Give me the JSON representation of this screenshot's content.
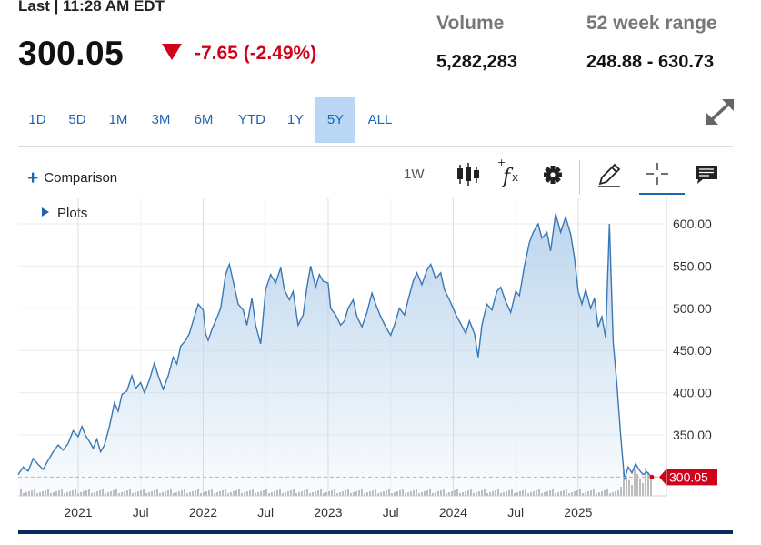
{
  "header": {
    "last_label": "Last | 11:28 AM EDT",
    "price": "300.05",
    "change": "-7.65 (-2.49%)",
    "volume_label": "Volume",
    "volume_value": "5,282,283",
    "range_label": "52 week range",
    "range_value": "248.88 - 630.73"
  },
  "colors": {
    "down": "#d0021b",
    "accent": "#1f66b1",
    "line": "#3a78b5",
    "area": "#b9d3ec",
    "bottom_bar": "#0a2a5c"
  },
  "ranges": [
    {
      "label": "1D",
      "active": false
    },
    {
      "label": "5D",
      "active": false
    },
    {
      "label": "1M",
      "active": false
    },
    {
      "label": "3M",
      "active": false
    },
    {
      "label": "6M",
      "active": false
    },
    {
      "label": "YTD",
      "active": false
    },
    {
      "label": "1Y",
      "active": false
    },
    {
      "label": "5Y",
      "active": true
    },
    {
      "label": "ALL",
      "active": false
    }
  ],
  "toolbar": {
    "comparison": "Comparison",
    "plots": "Plots",
    "interval": "1W",
    "icons": [
      "candlestick-icon",
      "function-icon",
      "gear-icon",
      "pencil-icon",
      "crosshair-icon",
      "comment-icon"
    ]
  },
  "chart_data": {
    "type": "area",
    "title": "",
    "xlabel": "",
    "ylabel": "",
    "y_tick_labels": [
      "350.00",
      "400.00",
      "450.00",
      "500.00",
      "550.00",
      "600.00"
    ],
    "x_tick_labels": [
      "2021",
      "Jul",
      "2022",
      "Jul",
      "2023",
      "Jul",
      "2024",
      "Jul",
      "2025"
    ],
    "ylim": [
      284,
      612
    ],
    "xlim": [
      2020.52,
      2025.59
    ],
    "last_price_label": "300.05",
    "last_price": 300.05,
    "grid": true,
    "series": [
      {
        "values": [
          [
            2020.52,
            303
          ],
          [
            2020.56,
            312
          ],
          [
            2020.6,
            307
          ],
          [
            2020.64,
            322
          ],
          [
            2020.68,
            315
          ],
          [
            2020.72,
            309
          ],
          [
            2020.76,
            320
          ],
          [
            2020.8,
            330
          ],
          [
            2020.84,
            338
          ],
          [
            2020.88,
            332
          ],
          [
            2020.92,
            340
          ],
          [
            2020.96,
            355
          ],
          [
            2021.0,
            348
          ],
          [
            2021.03,
            360
          ],
          [
            2021.06,
            349
          ],
          [
            2021.09,
            342
          ],
          [
            2021.12,
            334
          ],
          [
            2021.15,
            345
          ],
          [
            2021.18,
            330
          ],
          [
            2021.21,
            338
          ],
          [
            2021.25,
            360
          ],
          [
            2021.29,
            388
          ],
          [
            2021.32,
            378
          ],
          [
            2021.35,
            398
          ],
          [
            2021.39,
            402
          ],
          [
            2021.43,
            420
          ],
          [
            2021.46,
            405
          ],
          [
            2021.5,
            412
          ],
          [
            2021.53,
            400
          ],
          [
            2021.57,
            415
          ],
          [
            2021.61,
            435
          ],
          [
            2021.64,
            420
          ],
          [
            2021.68,
            404
          ],
          [
            2021.72,
            420
          ],
          [
            2021.76,
            442
          ],
          [
            2021.79,
            434
          ],
          [
            2021.82,
            455
          ],
          [
            2021.86,
            462
          ],
          [
            2021.89,
            470
          ],
          [
            2021.93,
            490
          ],
          [
            2021.96,
            505
          ],
          [
            2022.0,
            498
          ],
          [
            2022.02,
            470
          ],
          [
            2022.04,
            462
          ],
          [
            2022.07,
            475
          ],
          [
            2022.1,
            485
          ],
          [
            2022.14,
            500
          ],
          [
            2022.18,
            540
          ],
          [
            2022.21,
            552
          ],
          [
            2022.24,
            532
          ],
          [
            2022.28,
            505
          ],
          [
            2022.32,
            498
          ],
          [
            2022.35,
            480
          ],
          [
            2022.39,
            512
          ],
          [
            2022.42,
            480
          ],
          [
            2022.46,
            458
          ],
          [
            2022.5,
            522
          ],
          [
            2022.54,
            540
          ],
          [
            2022.58,
            530
          ],
          [
            2022.62,
            548
          ],
          [
            2022.65,
            522
          ],
          [
            2022.69,
            510
          ],
          [
            2022.72,
            520
          ],
          [
            2022.76,
            480
          ],
          [
            2022.8,
            492
          ],
          [
            2022.83,
            525
          ],
          [
            2022.86,
            550
          ],
          [
            2022.9,
            525
          ],
          [
            2022.93,
            540
          ],
          [
            2022.96,
            532
          ],
          [
            2023.0,
            530
          ],
          [
            2023.02,
            500
          ],
          [
            2023.06,
            492
          ],
          [
            2023.1,
            480
          ],
          [
            2023.13,
            485
          ],
          [
            2023.16,
            500
          ],
          [
            2023.2,
            510
          ],
          [
            2023.23,
            490
          ],
          [
            2023.27,
            478
          ],
          [
            2023.31,
            495
          ],
          [
            2023.35,
            518
          ],
          [
            2023.38,
            505
          ],
          [
            2023.42,
            490
          ],
          [
            2023.46,
            478
          ],
          [
            2023.5,
            468
          ],
          [
            2023.53,
            480
          ],
          [
            2023.57,
            500
          ],
          [
            2023.61,
            492
          ],
          [
            2023.64,
            510
          ],
          [
            2023.68,
            532
          ],
          [
            2023.71,
            542
          ],
          [
            2023.75,
            528
          ],
          [
            2023.79,
            545
          ],
          [
            2023.82,
            552
          ],
          [
            2023.86,
            535
          ],
          [
            2023.9,
            542
          ],
          [
            2023.93,
            522
          ],
          [
            2023.97,
            510
          ],
          [
            2024.0,
            500
          ],
          [
            2024.03,
            490
          ],
          [
            2024.06,
            482
          ],
          [
            2024.1,
            470
          ],
          [
            2024.13,
            485
          ],
          [
            2024.17,
            470
          ],
          [
            2024.2,
            442
          ],
          [
            2024.23,
            480
          ],
          [
            2024.27,
            505
          ],
          [
            2024.31,
            498
          ],
          [
            2024.35,
            520
          ],
          [
            2024.38,
            525
          ],
          [
            2024.42,
            508
          ],
          [
            2024.46,
            495
          ],
          [
            2024.5,
            520
          ],
          [
            2024.53,
            515
          ],
          [
            2024.57,
            550
          ],
          [
            2024.61,
            578
          ],
          [
            2024.64,
            590
          ],
          [
            2024.68,
            600
          ],
          [
            2024.71,
            583
          ],
          [
            2024.75,
            590
          ],
          [
            2024.78,
            568
          ],
          [
            2024.82,
            612
          ],
          [
            2024.86,
            590
          ],
          [
            2024.9,
            608
          ],
          [
            2024.94,
            588
          ],
          [
            2024.97,
            560
          ],
          [
            2025.0,
            520
          ],
          [
            2025.03,
            505
          ],
          [
            2025.06,
            522
          ],
          [
            2025.1,
            500
          ],
          [
            2025.13,
            512
          ],
          [
            2025.16,
            478
          ],
          [
            2025.19,
            490
          ],
          [
            2025.22,
            465
          ],
          [
            2025.25,
            600
          ],
          [
            2025.28,
            460
          ],
          [
            2025.31,
            410
          ],
          [
            2025.34,
            350
          ],
          [
            2025.37,
            297
          ],
          [
            2025.4,
            312
          ],
          [
            2025.43,
            305
          ],
          [
            2025.46,
            316
          ],
          [
            2025.49,
            308
          ],
          [
            2025.52,
            303
          ],
          [
            2025.55,
            306
          ],
          [
            2025.59,
            300.05
          ]
        ]
      }
    ]
  }
}
